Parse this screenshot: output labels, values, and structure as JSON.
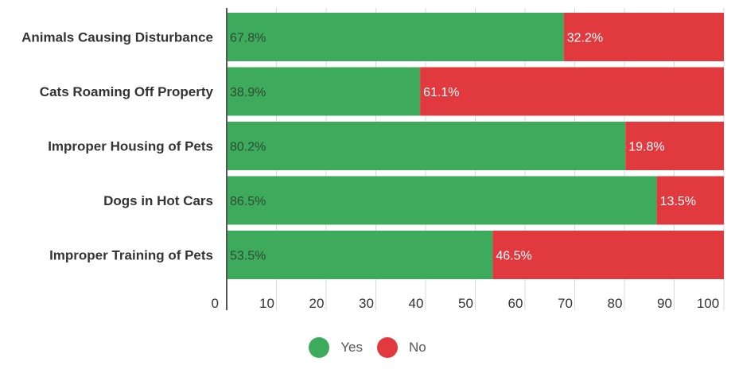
{
  "chart_data": {
    "type": "bar",
    "orientation": "horizontal",
    "stacked": true,
    "categories": [
      "Animals Causing Disturbance",
      "Cats Roaming Off Property",
      "Improper Housing of Pets",
      "Dogs in Hot Cars",
      "Improper Training of Pets"
    ],
    "series": [
      {
        "name": "Yes",
        "values": [
          67.8,
          38.9,
          80.2,
          86.5,
          53.5
        ],
        "labels": [
          "67.8%",
          "38.9%",
          "80.2%",
          "86.5%",
          "53.5%"
        ],
        "color": "#3daa5c"
      },
      {
        "name": "No",
        "values": [
          32.2,
          61.1,
          19.8,
          13.5,
          46.5
        ],
        "labels": [
          "32.2%",
          "61.1%",
          "19.8%",
          "13.5%",
          "46.5%"
        ],
        "color": "#e0393e"
      }
    ],
    "xlim": [
      0,
      100
    ],
    "xticks": [
      "0",
      "10",
      "20",
      "30",
      "40",
      "50",
      "60",
      "70",
      "80",
      "90",
      "100"
    ],
    "grid": true,
    "legend_position": "bottom"
  }
}
